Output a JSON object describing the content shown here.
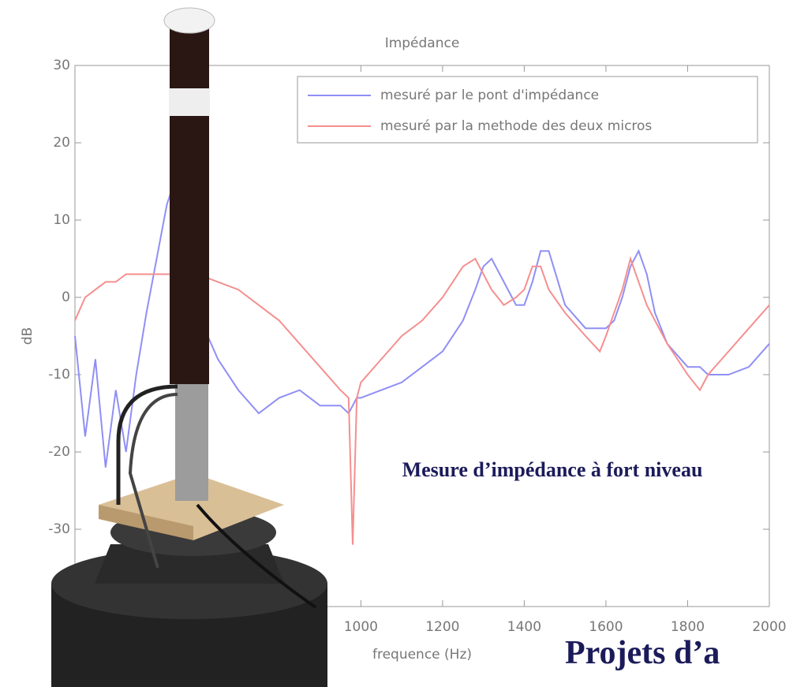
{
  "chart_data": {
    "type": "line",
    "title": "Impédance",
    "xlabel": "frequence (Hz)",
    "ylabel": "dB",
    "x": [
      300,
      325,
      350,
      375,
      400,
      425,
      450,
      475,
      500,
      525,
      550,
      575,
      600,
      650,
      700,
      750,
      800,
      850,
      900,
      950,
      970,
      980,
      990,
      1000,
      1050,
      1100,
      1150,
      1200,
      1250,
      1280,
      1300,
      1320,
      1350,
      1380,
      1400,
      1420,
      1440,
      1460,
      1500,
      1550,
      1585,
      1600,
      1620,
      1640,
      1660,
      1680,
      1700,
      1720,
      1750,
      1800,
      1830,
      1850,
      1900,
      1950,
      2000
    ],
    "series": [
      {
        "name": "mesuré par le pont d'impédance",
        "color": "#8f8ff5",
        "values": [
          -5,
          -18,
          -8,
          -22,
          -12,
          -20,
          -10,
          -2,
          5,
          12,
          16,
          4,
          -2,
          -8,
          -12,
          -15,
          -13,
          -12,
          -14,
          -14,
          -15,
          -14,
          -13,
          -13,
          -12,
          -11,
          -9,
          -7,
          -3,
          1,
          4,
          5,
          2,
          -1,
          -1,
          2,
          6,
          6,
          -1,
          -4,
          -4,
          -4,
          -3,
          0,
          4,
          6,
          3,
          -2,
          -6,
          -9,
          -9,
          -10,
          -10,
          -9,
          -6
        ]
      },
      {
        "name": "mesuré par la methode des deux micros",
        "color": "#f58f8f",
        "values": [
          -3,
          0,
          1,
          2,
          2,
          3,
          3,
          3,
          3,
          3,
          3,
          3,
          3,
          2,
          1,
          -1,
          -3,
          -6,
          -9,
          -12,
          -13,
          -32,
          -13,
          -11,
          -8,
          -5,
          -3,
          0,
          4,
          5,
          3,
          1,
          -1,
          0,
          1,
          4,
          4,
          1,
          -2,
          -5,
          -7,
          -5,
          -2,
          1,
          5,
          2,
          -1,
          -3,
          -6,
          -10,
          -12,
          -10,
          -7,
          -4,
          -1
        ]
      }
    ],
    "xlim": [
      300,
      2000
    ],
    "xticks": [
      1000,
      1200,
      1400,
      1600,
      1800,
      2000
    ],
    "ylim": [
      -40,
      30
    ],
    "yticks": [
      -30,
      -20,
      -10,
      0,
      10,
      20,
      30
    ],
    "annotation": "Mesure d’impédance à fort niveau"
  },
  "slide_title": "Projets d’a"
}
